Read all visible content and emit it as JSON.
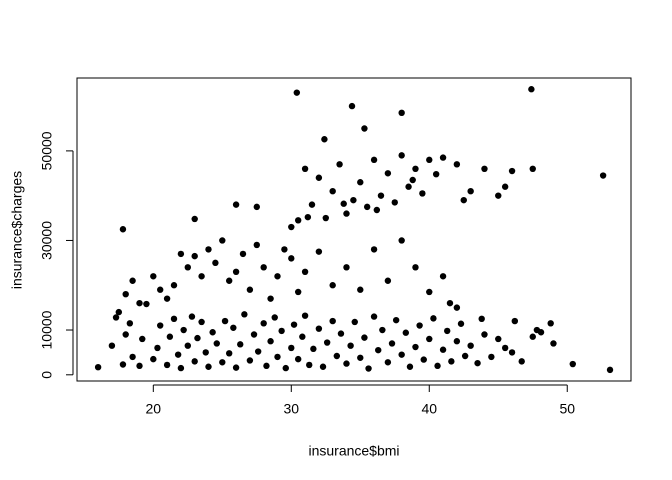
{
  "chart_data": {
    "type": "scatter",
    "x_label": "insurance$bmi",
    "y_label": "insurance$charges",
    "color": "#000000",
    "xlim": [
      14.47,
      54.62
    ],
    "ylim": [
      -1384,
      66276
    ],
    "xticks": [
      20,
      30,
      40,
      50
    ],
    "yticks": [
      0,
      10000,
      30000,
      50000
    ],
    "x": [
      16,
      17,
      17.3,
      17.8,
      18,
      18.3,
      18.5,
      19,
      19.2,
      20,
      20.3,
      20.5,
      21,
      21.2,
      21.5,
      21.8,
      22,
      22.2,
      22.5,
      22.8,
      23,
      23.2,
      23.5,
      23.8,
      24,
      24.3,
      24.6,
      25,
      25.2,
      25.5,
      25.8,
      26,
      26.3,
      26.6,
      27,
      27.3,
      27.6,
      28,
      28.2,
      28.5,
      28.8,
      29,
      29.3,
      29.6,
      30,
      30.2,
      30.5,
      30.8,
      31,
      31.3,
      31.6,
      32,
      32.3,
      32.6,
      33,
      33.3,
      33.6,
      34,
      34.3,
      34.6,
      35,
      35.3,
      35.6,
      36,
      36.3,
      36.6,
      37,
      37.3,
      37.6,
      38,
      38.3,
      38.6,
      39,
      39.3,
      39.6,
      40,
      40.3,
      40.6,
      41,
      41.3,
      41.6,
      42,
      42.3,
      42.6,
      43,
      43.5,
      43.8,
      44,
      44.5,
      45,
      45.5,
      46,
      46.2,
      46.7,
      47.5,
      47.8,
      48.1,
      48.8,
      49,
      17.5,
      18,
      18.5,
      19,
      19.5,
      20,
      20.5,
      21,
      21.5,
      22,
      22.5,
      23,
      23.5,
      24,
      24.5,
      25,
      25.5,
      26,
      26.5,
      27,
      27.5,
      28,
      28.5,
      29,
      29.5,
      30,
      30.5,
      31,
      32,
      33,
      34,
      35,
      36,
      37,
      38,
      39,
      40,
      41,
      41.5,
      42,
      30,
      30.5,
      31,
      31.5,
      32,
      32.5,
      33,
      33.5,
      34,
      34.5,
      35,
      35.5,
      36,
      36.5,
      37,
      37.5,
      38,
      38.5,
      39,
      39.5,
      40,
      41,
      42,
      42.5,
      43,
      44,
      45,
      45.5,
      46,
      47.5,
      31.2,
      33.8,
      36.2,
      38.8,
      40.5,
      30.4,
      34.4,
      47.4,
      35.3,
      38,
      32.4,
      52.6,
      50.4,
      53.1,
      17.8,
      23,
      26,
      27.5
    ],
    "values": [
      1700,
      6500,
      12800,
      2300,
      9000,
      11500,
      4000,
      2000,
      8000,
      3500,
      6000,
      11000,
      2200,
      8500,
      12500,
      4500,
      1500,
      10000,
      6500,
      13000,
      3000,
      8200,
      11800,
      5000,
      1800,
      9500,
      7000,
      2800,
      12000,
      4800,
      10500,
      1600,
      6800,
      13500,
      3200,
      9000,
      5200,
      11500,
      2000,
      7500,
      12800,
      4000,
      9800,
      1500,
      6000,
      11200,
      3500,
      8500,
      13200,
      2200,
      5800,
      10300,
      1800,
      7200,
      12000,
      4200,
      9200,
      2500,
      6500,
      11800,
      3800,
      8300,
      1400,
      13000,
      5500,
      10000,
      2800,
      7000,
      12200,
      4500,
      9400,
      1800,
      6200,
      11000,
      3400,
      8000,
      12600,
      2000,
      5600,
      9800,
      3000,
      7500,
      11400,
      4200,
      6500,
      2600,
      12500,
      9000,
      4000,
      8000,
      6000,
      5000,
      12000,
      3000,
      8500,
      10000,
      9500,
      11500,
      7000,
      14000,
      18000,
      21000,
      16000,
      15800,
      22000,
      19000,
      17000,
      20000,
      27000,
      24000,
      26500,
      22000,
      28000,
      25000,
      30000,
      21000,
      23000,
      27000,
      19000,
      29000,
      24000,
      17000,
      22000,
      28000,
      26000,
      18500,
      23000,
      27500,
      20000,
      24000,
      19000,
      28000,
      21000,
      30000,
      24000,
      18500,
      22000,
      16000,
      15000,
      33000,
      34500,
      46000,
      38000,
      44000,
      35000,
      41000,
      47000,
      36000,
      39000,
      43000,
      37500,
      48000,
      40000,
      45000,
      38500,
      49000,
      42000,
      46000,
      40500,
      48000,
      48500,
      47000,
      39000,
      41000,
      46000,
      40000,
      42000,
      45500,
      46000,
      35200,
      38200,
      36800,
      43500,
      44800,
      63000,
      60000,
      63770,
      55000,
      58500,
      52600,
      44500,
      2400,
      1100,
      32500,
      34800,
      38000,
      37500
    ]
  }
}
